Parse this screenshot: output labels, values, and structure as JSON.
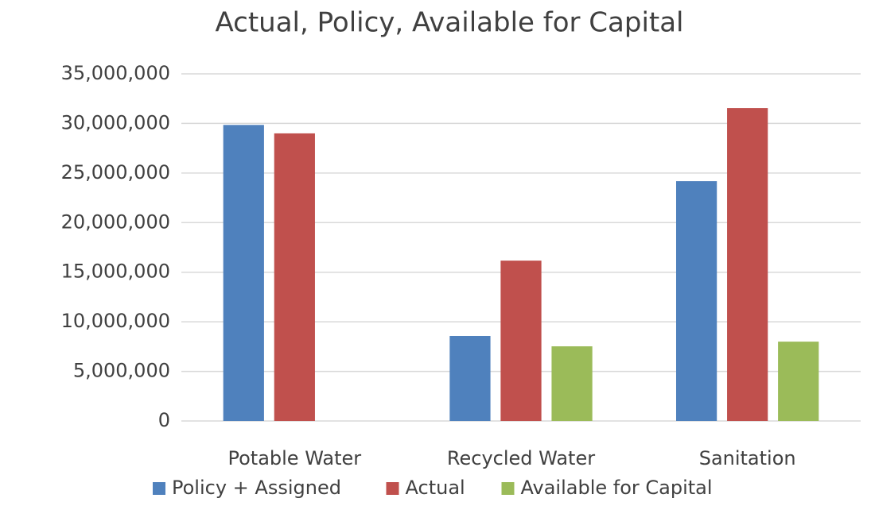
{
  "chart_data": {
    "type": "bar",
    "title": "Actual, Policy, Available for Capital",
    "categories": [
      "Potable Water",
      "Recycled Water",
      "Sanitation"
    ],
    "series": [
      {
        "name": "Policy + Assigned",
        "color": "#4f81bd",
        "values": [
          29850000,
          8570000,
          24180000
        ]
      },
      {
        "name": "Actual",
        "color": "#c0504d",
        "values": [
          29000000,
          16170000,
          31550000
        ]
      },
      {
        "name": "Available for Capital",
        "color": "#9bbb59",
        "values": [
          null,
          7530000,
          8000000
        ]
      }
    ],
    "ylim": [
      0,
      35000000
    ],
    "yticks": [
      0,
      {
        "value": 5000000,
        "label": "5,000,000"
      },
      {
        "value": 10000000,
        "label": "10,000,000"
      },
      {
        "value": 15000000,
        "label": "15,000,000"
      },
      {
        "value": 20000000,
        "label": "20,000,000"
      },
      {
        "value": 25000000,
        "label": "25,000,000"
      },
      {
        "value": 30000000,
        "label": "30,000,000"
      },
      {
        "value": 35000000,
        "label": "35,000,000"
      }
    ],
    "grid": true,
    "legend": "bottom"
  }
}
